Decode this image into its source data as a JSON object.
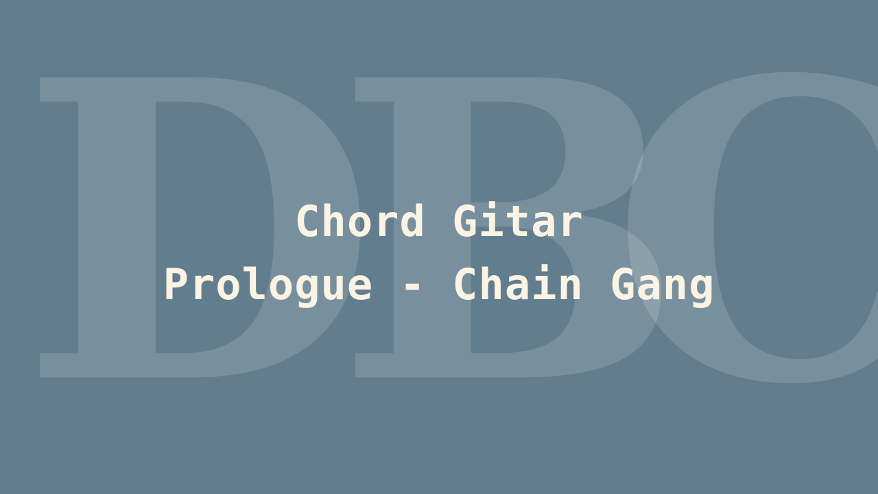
{
  "colors": {
    "background": "#617d8e",
    "title_text": "#fbf3e3",
    "watermark": "rgba(255,255,255,0.15)"
  },
  "watermark": {
    "letters": [
      "D",
      "B",
      "C"
    ]
  },
  "title": {
    "line1": "Chord Gitar",
    "line2": "Prologue - Chain Gang"
  }
}
